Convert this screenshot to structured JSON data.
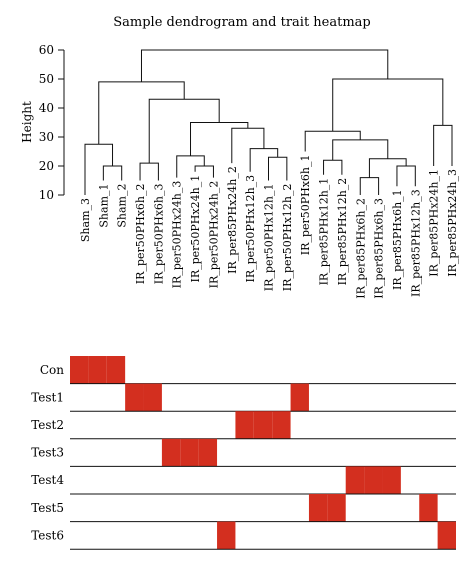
{
  "chart_data": [
    {
      "type": "dendrogram",
      "title": "Sample dendrogram and trait heatmap",
      "ylabel": "Height",
      "ylim": [
        10,
        62
      ],
      "yticks": [
        10,
        20,
        30,
        40,
        50,
        60
      ],
      "leaves": [
        "Sham_3",
        "Sham_1",
        "Sham_2",
        "IR_per50PHx6h_2",
        "IR_per50PHx6h_3",
        "IR_per50PHx24h_3",
        "IR_per50PHx24h_1",
        "IR_per50PHx24h_2",
        "IR_per85PHx24h_2",
        "IR_per50PHx12h_3",
        "IR_per50PHx12h_1",
        "IR_per50PHx12h_2",
        "IR_per50PHx6h_1",
        "IR_per85PHx12h_1",
        "IR_per85PHx12h_2",
        "IR_per85PHx6h_2",
        "IR_per85PHx6h_3",
        "IR_per85PHx6h_1",
        "IR_per85PHx12h_3",
        "IR_per85PHx24h_1",
        "IR_per85PHx24h_3"
      ],
      "leaf_heights": [
        10,
        15,
        15,
        15,
        15,
        16,
        18,
        16,
        21,
        18,
        15,
        15,
        25,
        17,
        17,
        10,
        10,
        13,
        13,
        20,
        20
      ],
      "merges": [
        {
          "a": "L1",
          "b": "L2",
          "height": 20
        },
        {
          "a": "L0",
          "b": "N0",
          "height": 27.5
        },
        {
          "a": "L3",
          "b": "L4",
          "height": 21
        },
        {
          "a": "L6",
          "b": "L7",
          "height": 20
        },
        {
          "a": "L5",
          "b": "N3",
          "height": 23.5
        },
        {
          "a": "L10",
          "b": "L11",
          "height": 23
        },
        {
          "a": "L9",
          "b": "N5",
          "height": 26
        },
        {
          "a": "L8",
          "b": "N6",
          "height": 33
        },
        {
          "a": "N4",
          "b": "N7",
          "height": 35
        },
        {
          "a": "N2",
          "b": "N8",
          "height": 43
        },
        {
          "a": "N1",
          "b": "N9",
          "height": 49
        },
        {
          "a": "L13",
          "b": "L14",
          "height": 22
        },
        {
          "a": "L15",
          "b": "L16",
          "height": 16
        },
        {
          "a": "L17",
          "b": "L18",
          "height": 20
        },
        {
          "a": "N12",
          "b": "N13",
          "height": 22.5
        },
        {
          "a": "N11",
          "b": "N14",
          "height": 29
        },
        {
          "a": "L12",
          "b": "N15",
          "height": 32
        },
        {
          "a": "L19",
          "b": "L20",
          "height": 34
        },
        {
          "a": "N16",
          "b": "N17",
          "height": 50
        },
        {
          "a": "N10",
          "b": "N18",
          "height": 60
        }
      ]
    },
    {
      "type": "heatmap",
      "rows": [
        "Con",
        "Test1",
        "Test2",
        "Test3",
        "Test4",
        "Test5",
        "Test6"
      ],
      "columns": 21,
      "cells": [
        [
          0,
          1,
          2
        ],
        [
          3,
          4,
          12
        ],
        [
          9,
          10,
          11
        ],
        [
          5,
          6,
          7
        ],
        [
          15,
          16,
          17
        ],
        [
          13,
          14,
          19
        ],
        [
          8,
          20
        ]
      ],
      "colors": {
        "active": "#d32f1f",
        "inactive": "#ffffff"
      }
    }
  ]
}
